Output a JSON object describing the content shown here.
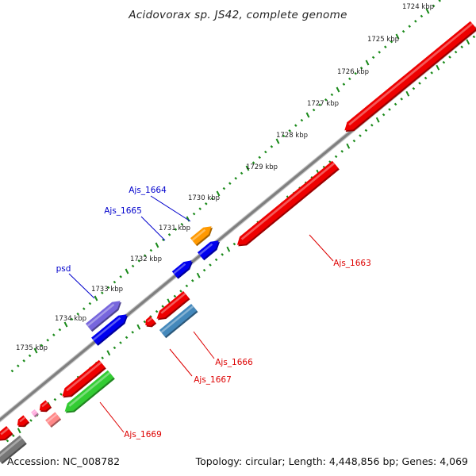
{
  "title": "Acidovorax sp. JS42, complete genome",
  "footer": {
    "accession": "Accession: NC_008782",
    "summary": "Topology: circular; Length: 4,448,856 bp; Genes: 4,069"
  },
  "colors": {
    "backbone": "#8a8a8a",
    "tick_outer": "#1a8a1a",
    "tick_inner": "#1a8a1a",
    "label_plus": "#0000cc",
    "label_minus": "#dd0000"
  },
  "ticks": [
    {
      "label": "1724 kbp"
    },
    {
      "label": "1725 kbp"
    },
    {
      "label": "1726 kbp"
    },
    {
      "label": "1727 kbp"
    },
    {
      "label": "1728 kbp"
    },
    {
      "label": "1729 kbp"
    },
    {
      "label": "1730 kbp"
    },
    {
      "label": "1731 kbp"
    },
    {
      "label": "1732 kbp"
    },
    {
      "label": "1733 kbp"
    },
    {
      "label": "1734 kbp"
    },
    {
      "label": "1735 kbp"
    }
  ],
  "genes": [
    {
      "name": "Ajs_1664",
      "strand": "+",
      "color": "#ff9900"
    },
    {
      "name": "Ajs_1665",
      "strand": "+",
      "color": "#0000ee"
    },
    {
      "name": "psd",
      "strand": "+",
      "color": "#7766dd"
    },
    {
      "name": "Ajs_1663",
      "strand": "-",
      "color": "#ee0000"
    },
    {
      "name": "Ajs_1666",
      "strand": "-",
      "color": "#4488bb"
    },
    {
      "name": "Ajs_1667",
      "strand": "-",
      "color": "#ee0000"
    },
    {
      "name": "Ajs_1669",
      "strand": "-",
      "color": "#33cc33"
    }
  ]
}
